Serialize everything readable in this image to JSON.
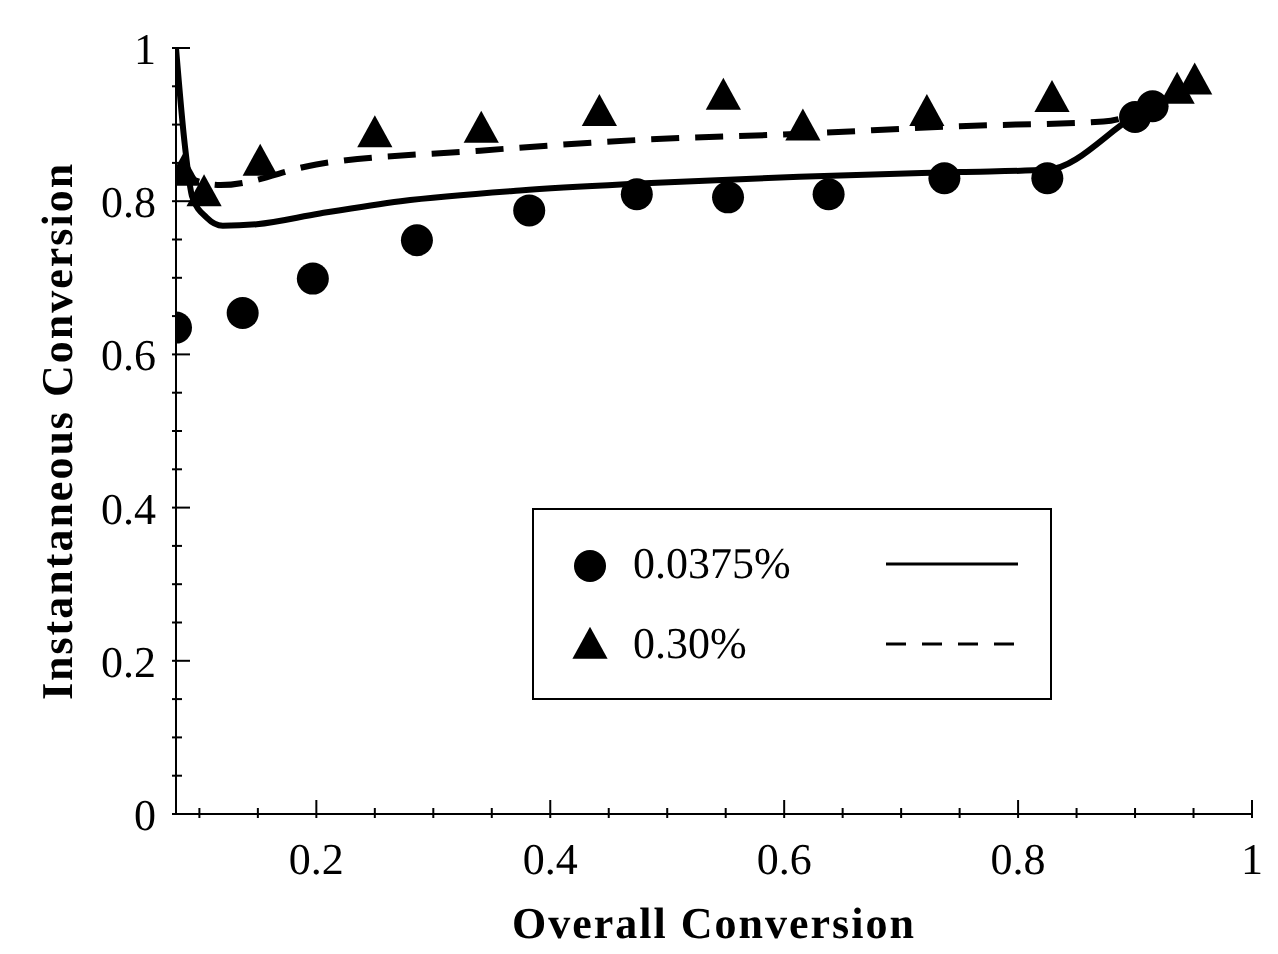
{
  "chart_data": {
    "type": "scatter",
    "xlabel": "Overall Conversion",
    "ylabel": "Instantaneous Conversion",
    "xlim": [
      0.08,
      1
    ],
    "ylim": [
      0,
      1
    ],
    "xticks": [
      {
        "value": 0.1,
        "label": null
      },
      {
        "value": 0.15,
        "label": null
      },
      0.2,
      {
        "value": 0.25,
        "label": null
      },
      {
        "value": 0.3,
        "label": null
      },
      {
        "value": 0.35,
        "label": null
      },
      0.4,
      {
        "value": 0.45,
        "label": null
      },
      {
        "value": 0.5,
        "label": null
      },
      {
        "value": 0.55,
        "label": null
      },
      0.6,
      {
        "value": 0.65,
        "label": null
      },
      {
        "value": 0.7,
        "label": null
      },
      {
        "value": 0.75,
        "label": null
      },
      0.8,
      {
        "value": 0.85,
        "label": null
      },
      {
        "value": 0.9,
        "label": null
      },
      {
        "value": 0.95,
        "label": null
      },
      1
    ],
    "yticks": [
      0,
      {
        "value": 0.05,
        "label": null
      },
      {
        "value": 0.1,
        "label": null
      },
      {
        "value": 0.15,
        "label": null
      },
      0.2,
      {
        "value": 0.25,
        "label": null
      },
      {
        "value": 0.3,
        "label": null
      },
      {
        "value": 0.35,
        "label": null
      },
      0.4,
      {
        "value": 0.45,
        "label": null
      },
      {
        "value": 0.5,
        "label": null
      },
      {
        "value": 0.55,
        "label": null
      },
      0.6,
      {
        "value": 0.65,
        "label": null
      },
      {
        "value": 0.7,
        "label": null
      },
      {
        "value": 0.75,
        "label": null
      },
      0.8,
      {
        "value": 0.85,
        "label": null
      },
      {
        "value": 0.9,
        "label": null
      },
      {
        "value": 0.95,
        "label": null
      },
      1
    ],
    "grid": false,
    "legend": "bottom right",
    "series": [
      {
        "name": "0.0375%",
        "marker": "circle",
        "color": "#000000",
        "x": [
          0.08,
          0.137,
          0.197,
          0.286,
          0.382,
          0.474,
          0.552,
          0.638,
          0.737,
          0.825,
          0.9,
          0.915
        ],
        "values": [
          0.635,
          0.654,
          0.699,
          0.749,
          0.788,
          0.809,
          0.805,
          0.809,
          0.83,
          0.83,
          0.91,
          0.924
        ]
      },
      {
        "name": "0.30%",
        "marker": "triangle",
        "color": "#000000",
        "x": [
          0.086,
          0.104,
          0.152,
          0.25,
          0.341,
          0.442,
          0.548,
          0.616,
          0.722,
          0.829,
          0.936,
          0.951
        ],
        "values": [
          0.837,
          0.81,
          0.85,
          0.887,
          0.893,
          0.915,
          0.936,
          0.896,
          0.915,
          0.933,
          0.944,
          0.956
        ]
      },
      {
        "type": "line",
        "line_style": "solid",
        "marker": "none",
        "color": "#000000",
        "x": [
          0.08,
          0.0875,
          0.094,
          0.106,
          0.12,
          0.149,
          0.203,
          0.272,
          0.374,
          0.476,
          0.613,
          0.75,
          0.825,
          0.9,
          0.913
        ],
        "values": [
          1.0,
          0.874,
          0.805,
          0.779,
          0.768,
          0.77,
          0.784,
          0.8,
          0.814,
          0.823,
          0.832,
          0.838,
          0.841,
          0.912,
          0.924
        ]
      },
      {
        "type": "line",
        "line_style": "dashed",
        "marker": "none",
        "color": "#000000",
        "x": [
          0.085,
          0.097,
          0.118,
          0.2,
          0.34,
          0.476,
          0.613,
          0.75,
          0.873,
          0.94
        ],
        "values": [
          0.853,
          0.827,
          0.821,
          0.848,
          0.866,
          0.88,
          0.888,
          0.898,
          0.904,
          0.949
        ]
      }
    ]
  }
}
